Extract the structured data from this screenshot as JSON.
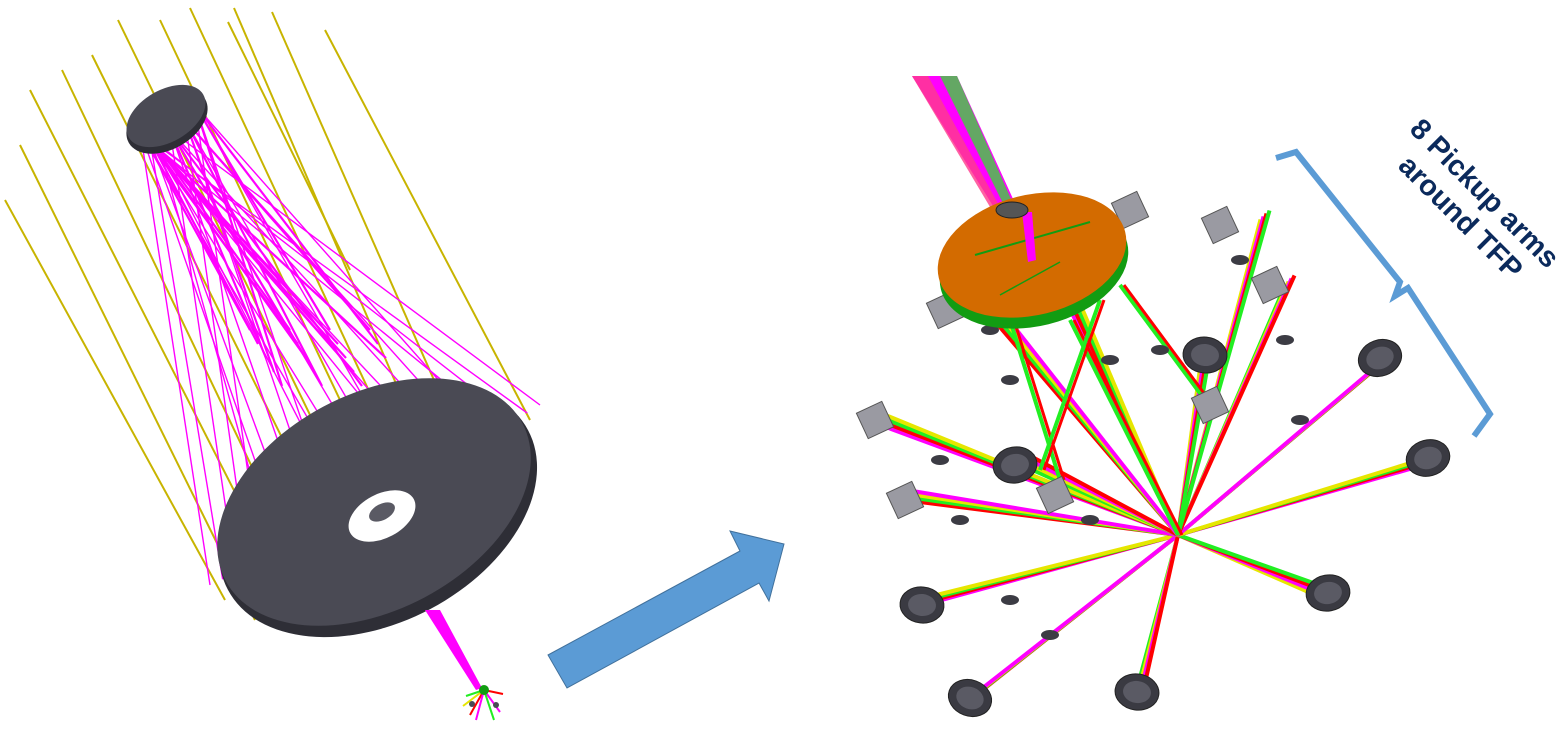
{
  "annotation": {
    "line1": "8 Pickup arms",
    "line2": "around TFP"
  },
  "colors": {
    "background": "#ffffff",
    "telescope_rays": "#c8b400",
    "beam_magenta": "#ff00ff",
    "beam_red": "#ff0000",
    "beam_green": "#22ee22",
    "beam_yellow": "#e6e600",
    "mirror_gray": "#4a4a54",
    "focal_plane_orange": "#d36b00",
    "focal_plane_rim": "#129c12",
    "arrow_fill": "#5b9bd5",
    "bracket": "#5b9bd5",
    "annotation_text": "#0b2a5c"
  }
}
